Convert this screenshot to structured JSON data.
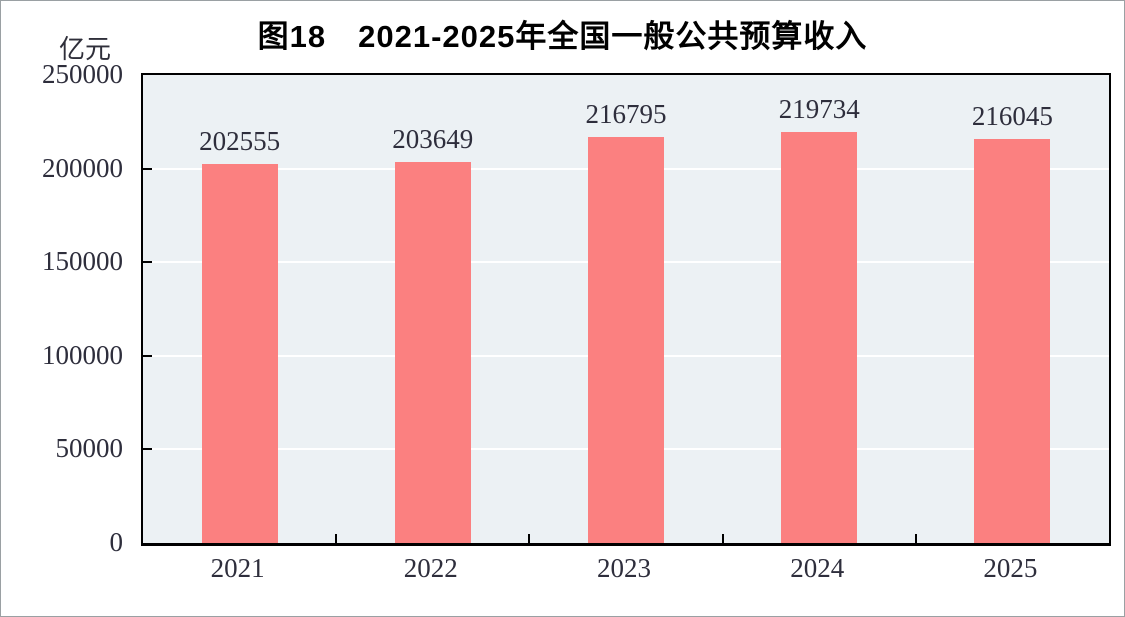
{
  "figure": {
    "title": "图18　2021-2025年全国一般公共预算收入",
    "unit_label": "亿元"
  },
  "chart_data": {
    "type": "bar",
    "title": "图18　2021-2025年全国一般公共预算收入",
    "categories": [
      "2021",
      "2022",
      "2023",
      "2024",
      "2025"
    ],
    "values": [
      202555,
      203649,
      216795,
      219734,
      216045
    ],
    "xlabel": "",
    "ylabel": "亿元",
    "ylim": [
      0,
      250000
    ],
    "yticks": [
      0,
      50000,
      100000,
      150000,
      200000,
      250000
    ],
    "grid": true,
    "data_labels": true,
    "legend": "none",
    "bar_color": "#FB8080",
    "plot_background": "#ECF1F4",
    "gridline_color": "#FFFFFF",
    "axis_color": "#000000",
    "text_color": "#2e2e3c"
  }
}
